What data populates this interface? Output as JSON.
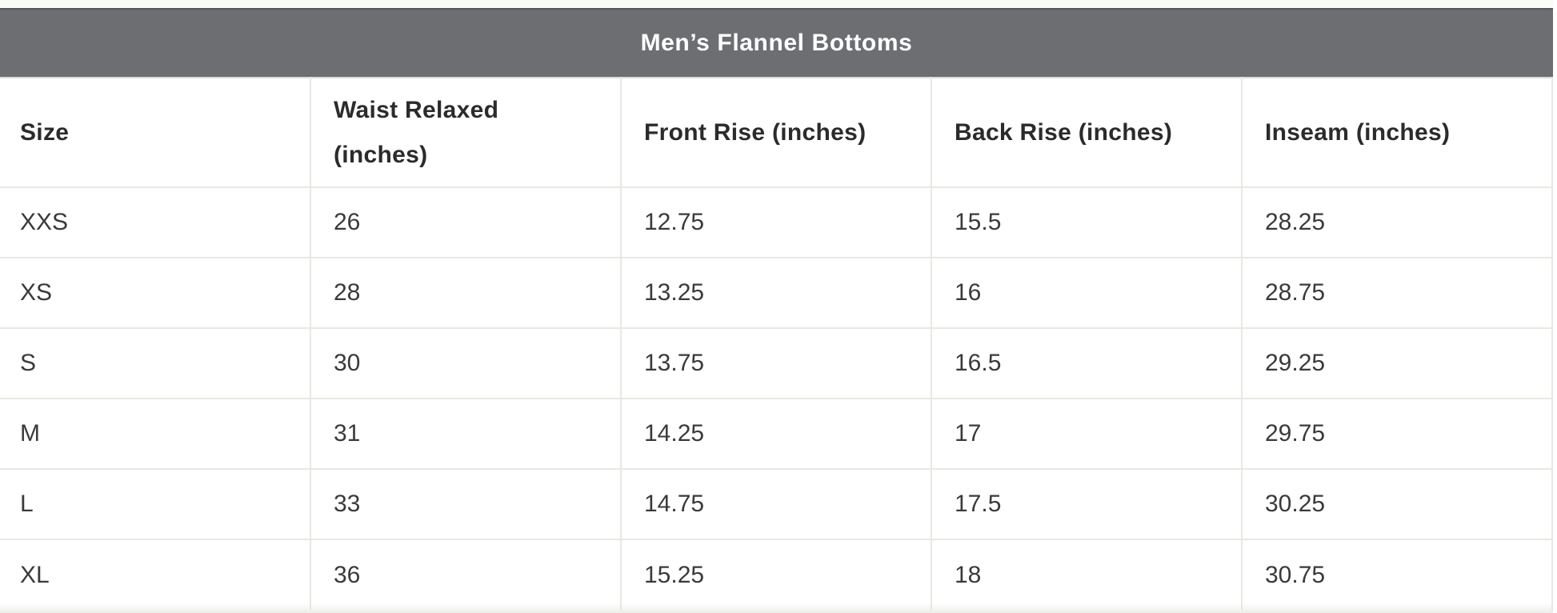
{
  "table": {
    "title": "Men’s Flannel Bottoms",
    "columns": [
      "Size",
      "Waist Relaxed (inches)",
      "Front Rise (inches)",
      "Back Rise (inches)",
      "Inseam (inches)"
    ],
    "rows": [
      [
        "XXS",
        "26",
        "12.75",
        "15.5",
        "28.25"
      ],
      [
        "XS",
        "28",
        "13.25",
        "16",
        "28.75"
      ],
      [
        "S",
        "30",
        "13.75",
        "16.5",
        "29.25"
      ],
      [
        "M",
        "31",
        "14.25",
        "17",
        "29.75"
      ],
      [
        "L",
        "33",
        "14.75",
        "17.5",
        "30.25"
      ],
      [
        "XL",
        "36",
        "15.25",
        "18",
        "30.75"
      ]
    ]
  },
  "colors": {
    "title_bar_bg": "#6c6e72",
    "title_text": "#ffffff",
    "column_header_text": "#2b2b2b",
    "cell_text": "#3a3a3a",
    "border": "#e9e8e2"
  }
}
